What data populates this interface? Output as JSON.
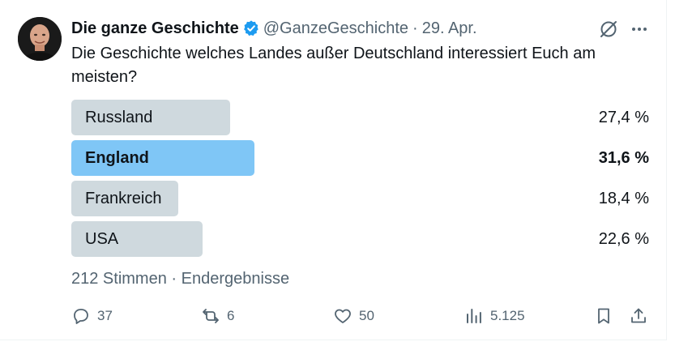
{
  "author": {
    "display_name": "Die ganze Geschichte",
    "handle": "@GanzeGeschichte",
    "separator": "·",
    "date": "29. Apr."
  },
  "post": {
    "text": "Die Geschichte welches Landes außer Deutschland interessiert Euch am meisten?"
  },
  "poll": {
    "options": [
      {
        "label": "Russland",
        "percent_text": "27,4 %",
        "percent": 27.4,
        "winner": false
      },
      {
        "label": "England",
        "percent_text": "31,6 %",
        "percent": 31.6,
        "winner": true
      },
      {
        "label": "Frankreich",
        "percent_text": "18,4 %",
        "percent": 18.4,
        "winner": false
      },
      {
        "label": "USA",
        "percent_text": "22,6 %",
        "percent": 22.6,
        "winner": false
      }
    ],
    "votes_text": "212 Stimmen",
    "separator": "·",
    "status_text": "Endergebnisse"
  },
  "actions": {
    "replies": "37",
    "reposts": "6",
    "likes": "50",
    "views": "5.125"
  },
  "icons": [
    "verified-badge-icon",
    "grok-icon",
    "more-icon",
    "reply-icon",
    "repost-icon",
    "like-icon",
    "views-icon",
    "bookmark-icon",
    "share-icon"
  ],
  "colors": {
    "accent": "#1d9bf0",
    "winner_bar": "#7fc6f6",
    "bar": "#cfd9de",
    "secondary_text": "#536471"
  }
}
